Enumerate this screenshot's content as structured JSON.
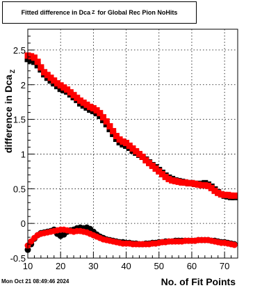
{
  "title": {
    "main": "Fitted difference in Dca",
    "sub": "Z",
    "rest": "for Global Rec Pion NoHits"
  },
  "timestamp": "Mon Oct 21 08:49:46 2024",
  "colors": {
    "series_black": "#000000",
    "series_red": "#ff0000",
    "frame": "#000000",
    "grid": "#000000"
  },
  "chart_data": {
    "type": "scatter",
    "title": "Fitted difference in Dca Z for Global Rec Pion NoHits",
    "xlabel": "No. of Fit Points",
    "ylabel": "difference in Dca",
    "ylabel_sub": "Z",
    "xlim": [
      10,
      74
    ],
    "ylim": [
      -0.5,
      2.8
    ],
    "grid": true,
    "x_ticks": [
      10,
      20,
      30,
      40,
      50,
      60,
      70
    ],
    "x_tick_labels": [
      "10",
      "20",
      "30",
      "40",
      "50",
      "60",
      "70"
    ],
    "y_ticks": [
      -0.5,
      0,
      0.5,
      1,
      1.5,
      2,
      2.5
    ],
    "y_tick_labels": [
      "-0.5",
      "0",
      "0.5",
      "1",
      "1.5",
      "2",
      "2.5"
    ],
    "series": [
      {
        "color": "#000000",
        "marker": "square",
        "x": [
          10,
          11,
          12,
          13,
          14,
          15,
          16,
          17,
          18,
          19,
          20,
          21,
          22,
          23,
          24,
          25,
          26,
          27,
          28,
          29,
          30,
          31,
          32,
          33,
          34,
          35,
          36,
          37,
          38,
          39,
          40,
          41,
          42,
          43,
          44,
          45,
          46,
          47,
          48,
          49,
          50,
          51,
          52,
          53,
          54,
          55,
          56,
          57,
          58,
          59,
          60,
          61,
          62,
          63,
          64,
          65,
          66,
          67,
          68,
          69,
          70,
          71,
          72,
          73
        ],
        "y": [
          2.37,
          2.35,
          2.33,
          2.28,
          2.22,
          2.15,
          2.1,
          2.06,
          2.02,
          1.98,
          1.94,
          1.92,
          1.9,
          1.86,
          1.82,
          1.78,
          1.73,
          1.7,
          1.67,
          1.64,
          1.62,
          1.59,
          1.55,
          1.49,
          1.43,
          1.36,
          1.29,
          1.22,
          1.17,
          1.14,
          1.12,
          1.09,
          1.05,
          1.02,
          0.99,
          0.96,
          0.92,
          0.88,
          0.84,
          0.81,
          0.77,
          0.73,
          0.69,
          0.66,
          0.64,
          0.62,
          0.61,
          0.6,
          0.59,
          0.58,
          0.58,
          0.57,
          0.57,
          0.57,
          0.58,
          0.56,
          0.53,
          0.49,
          0.45,
          0.42,
          0.4,
          0.39,
          0.38,
          0.38
        ]
      },
      {
        "color": "#000000",
        "marker": "circle",
        "x": [
          10,
          11,
          12,
          13,
          14,
          15,
          16,
          17,
          18,
          19,
          20,
          21,
          22,
          23,
          24,
          25,
          26,
          27,
          28,
          29,
          30,
          31,
          32,
          33,
          34,
          35,
          36,
          37,
          38,
          39,
          40,
          41,
          42,
          43,
          44,
          45,
          46,
          47,
          48,
          49,
          50,
          51,
          52,
          53,
          54,
          55,
          56,
          57,
          58,
          59,
          60,
          61,
          62,
          63,
          64,
          65,
          66,
          67,
          68,
          69,
          70,
          71,
          72,
          73
        ],
        "y": [
          -0.38,
          -0.3,
          -0.22,
          -0.17,
          -0.14,
          -0.13,
          -0.12,
          -0.11,
          -0.09,
          -0.15,
          -0.18,
          -0.16,
          -0.12,
          -0.1,
          -0.09,
          -0.07,
          -0.06,
          -0.07,
          -0.06,
          -0.08,
          -0.12,
          -0.16,
          -0.19,
          -0.21,
          -0.23,
          -0.24,
          -0.25,
          -0.26,
          -0.27,
          -0.27,
          -0.28,
          -0.28,
          -0.29,
          -0.29,
          -0.3,
          -0.3,
          -0.29,
          -0.29,
          -0.28,
          -0.28,
          -0.27,
          -0.27,
          -0.26,
          -0.26,
          -0.26,
          -0.25,
          -0.25,
          -0.25,
          -0.25,
          -0.25,
          -0.25,
          -0.25,
          -0.24,
          -0.24,
          -0.24,
          -0.24,
          -0.25,
          -0.25,
          -0.26,
          -0.27,
          -0.27,
          -0.28,
          -0.29,
          -0.3
        ]
      },
      {
        "color": "#ff0000",
        "marker": "square",
        "x": [
          10,
          11,
          12,
          13,
          14,
          15,
          16,
          17,
          18,
          19,
          20,
          21,
          22,
          23,
          24,
          25,
          26,
          27,
          28,
          29,
          30,
          31,
          32,
          33,
          34,
          35,
          36,
          37,
          38,
          39,
          40,
          41,
          42,
          43,
          44,
          45,
          46,
          47,
          48,
          49,
          50,
          51,
          52,
          53,
          54,
          55,
          56,
          57,
          58,
          59,
          60,
          61,
          62,
          63,
          64,
          65,
          66,
          67,
          68,
          69,
          70,
          71,
          72,
          73
        ],
        "y": [
          2.42,
          2.41,
          2.39,
          2.33,
          2.25,
          2.18,
          2.14,
          2.1,
          2.06,
          2.02,
          1.99,
          1.96,
          1.93,
          1.89,
          1.85,
          1.81,
          1.77,
          1.74,
          1.71,
          1.68,
          1.66,
          1.63,
          1.59,
          1.53,
          1.47,
          1.4,
          1.33,
          1.26,
          1.21,
          1.18,
          1.16,
          1.12,
          1.08,
          1.04,
          1.0,
          0.96,
          0.91,
          0.87,
          0.83,
          0.79,
          0.75,
          0.71,
          0.67,
          0.64,
          0.62,
          0.61,
          0.6,
          0.59,
          0.59,
          0.58,
          0.58,
          0.57,
          0.56,
          0.55,
          0.55,
          0.54,
          0.51,
          0.47,
          0.44,
          0.42,
          0.41,
          0.41,
          0.4,
          0.4
        ]
      },
      {
        "color": "#ff0000",
        "marker": "circle",
        "x": [
          10,
          11,
          12,
          13,
          14,
          15,
          16,
          17,
          18,
          19,
          20,
          21,
          22,
          23,
          24,
          25,
          26,
          27,
          28,
          29,
          30,
          31,
          32,
          33,
          34,
          35,
          36,
          37,
          38,
          39,
          40,
          41,
          42,
          43,
          44,
          45,
          46,
          47,
          48,
          49,
          50,
          51,
          52,
          53,
          54,
          55,
          56,
          57,
          58,
          59,
          60,
          61,
          62,
          63,
          64,
          65,
          66,
          67,
          68,
          69,
          70,
          71,
          72,
          73
        ],
        "y": [
          -0.32,
          -0.26,
          -0.21,
          -0.17,
          -0.15,
          -0.14,
          -0.13,
          -0.12,
          -0.11,
          -0.1,
          -0.09,
          -0.09,
          -0.1,
          -0.11,
          -0.12,
          -0.11,
          -0.11,
          -0.12,
          -0.13,
          -0.15,
          -0.17,
          -0.19,
          -0.21,
          -0.23,
          -0.24,
          -0.25,
          -0.26,
          -0.27,
          -0.28,
          -0.29,
          -0.29,
          -0.29,
          -0.3,
          -0.3,
          -0.3,
          -0.3,
          -0.3,
          -0.3,
          -0.29,
          -0.29,
          -0.28,
          -0.27,
          -0.27,
          -0.26,
          -0.26,
          -0.26,
          -0.26,
          -0.26,
          -0.25,
          -0.25,
          -0.25,
          -0.25,
          -0.24,
          -0.24,
          -0.24,
          -0.24,
          -0.25,
          -0.26,
          -0.27,
          -0.28,
          -0.28,
          -0.29,
          -0.3,
          -0.31
        ]
      }
    ]
  }
}
